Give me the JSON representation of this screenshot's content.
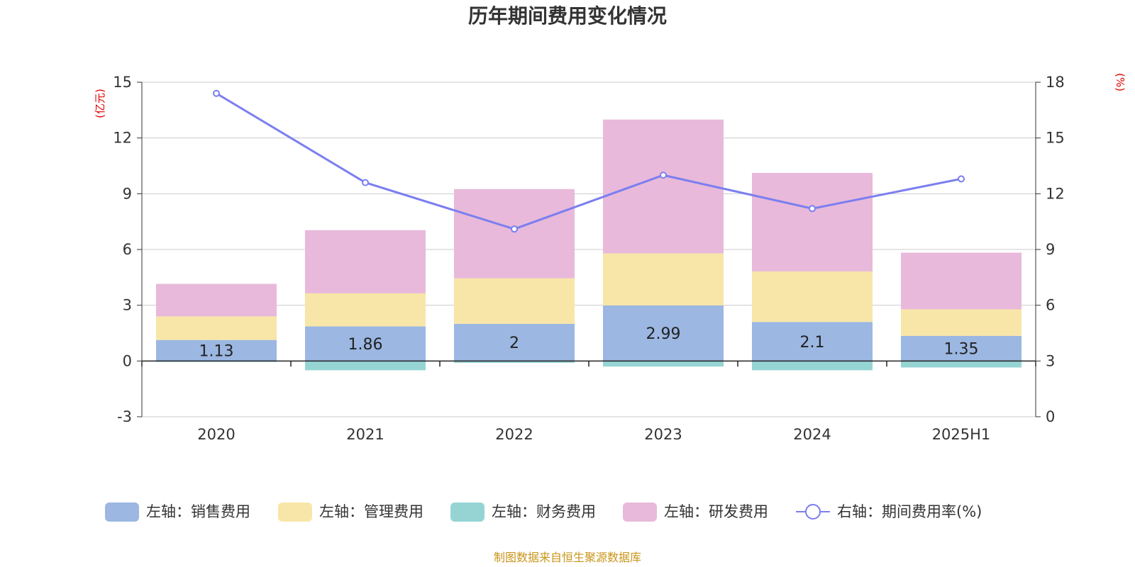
{
  "chart_data": {
    "type": "bar",
    "title": "历年期间费用变化情况",
    "left_axis_unit": "(亿元)",
    "right_axis_unit": "(%)",
    "categories": [
      "2020",
      "2021",
      "2022",
      "2023",
      "2024",
      "2025H1"
    ],
    "left_ylim": [
      -3,
      15
    ],
    "left_yticks": [
      -3,
      0,
      3,
      6,
      9,
      12,
      15
    ],
    "right_ylim": [
      0,
      18
    ],
    "right_yticks": [
      0,
      3,
      6,
      9,
      12,
      15,
      18
    ],
    "grid": true,
    "legend_position": "bottom",
    "series": [
      {
        "name": "左轴：销售费用",
        "axis": "left",
        "kind": "bar",
        "color": "#9bb7e2",
        "show_labels": true,
        "values": [
          1.13,
          1.86,
          2,
          2.99,
          2.1,
          1.35
        ]
      },
      {
        "name": "左轴：管理费用",
        "axis": "left",
        "kind": "bar",
        "color": "#f8e6a8",
        "show_labels": false,
        "values": [
          1.27,
          1.78,
          2.45,
          2.8,
          2.72,
          1.43
        ]
      },
      {
        "name": "左轴：财务费用",
        "axis": "left",
        "kind": "bar",
        "color": "#96d4d4",
        "show_labels": false,
        "values": [
          -0.05,
          -0.5,
          -0.1,
          -0.3,
          -0.5,
          -0.35
        ]
      },
      {
        "name": "左轴：研发费用",
        "axis": "left",
        "kind": "bar",
        "color": "#e8b9da",
        "show_labels": false,
        "values": [
          1.75,
          3.4,
          4.8,
          7.2,
          5.3,
          3.05
        ]
      },
      {
        "name": "右轴：期间费用率(%)",
        "axis": "right",
        "kind": "line",
        "color": "#7b7ff0",
        "show_labels": false,
        "values": [
          17.4,
          12.6,
          10.1,
          13.0,
          11.2,
          12.8
        ]
      }
    ],
    "source": "制图数据来自恒生聚源数据库"
  }
}
